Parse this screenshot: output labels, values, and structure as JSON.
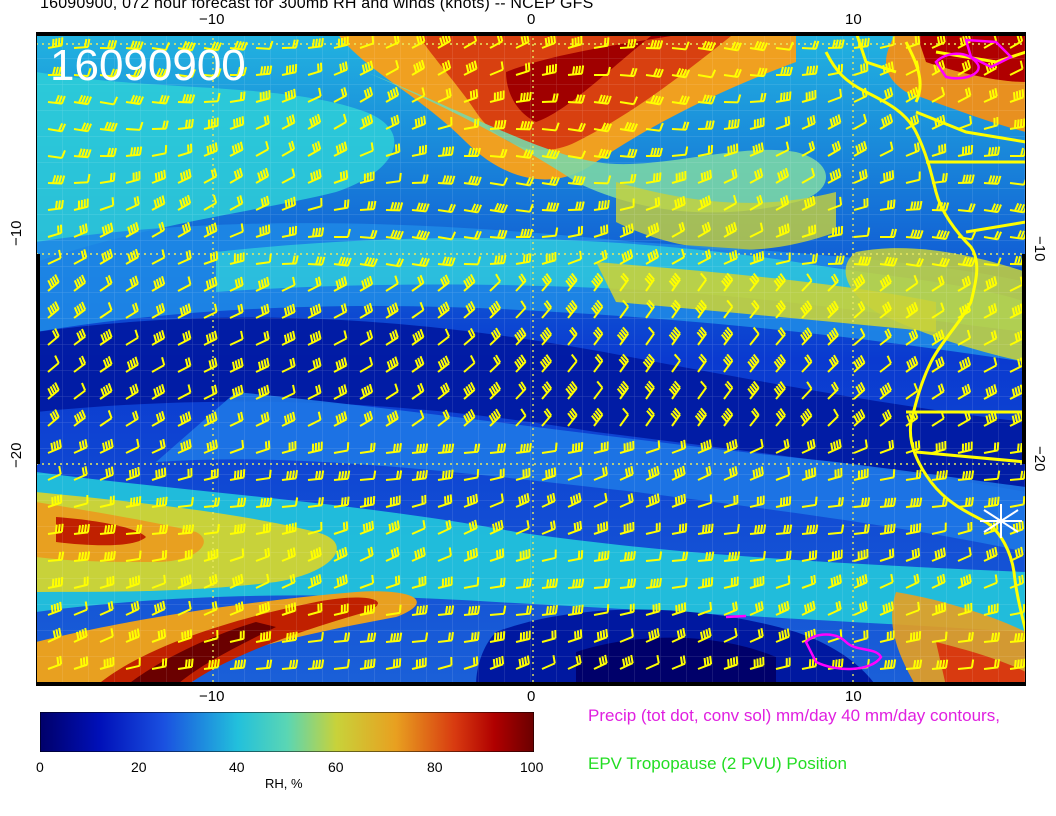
{
  "title": "16090900, 072 hour forecast for 300mb RH and winds (knots) -- NCEP GFS",
  "overlay_date": "16090900",
  "axes": {
    "top_ticks": [
      "−10",
      "0",
      "10"
    ],
    "bottom_ticks": [
      "−10",
      "0",
      "10"
    ],
    "left_ticks": [
      "−10",
      "−20"
    ],
    "right_ticks": [
      "−10",
      "−20"
    ]
  },
  "colorbar": {
    "title": "RH, %",
    "ticks": [
      "0",
      "20",
      "40",
      "60",
      "80",
      "100"
    ],
    "colors": [
      "#00006a",
      "#0020c8",
      "#1e78e6",
      "#22c8dc",
      "#7ad6a6",
      "#c8d23a",
      "#e8a020",
      "#d83a10",
      "#a00000",
      "#6a0000"
    ]
  },
  "legend": {
    "precip": "Precip (tot dot, conv sol) mm/day 40 mm/day contours,",
    "epv": "EPV Tropopause (2 PVU) Position"
  },
  "colors": {
    "wind_barbs": "#ffff00",
    "coastline": "#ffff00",
    "precip_contours": "#ff00ff",
    "epv_text": "#22dd22",
    "precip_text": "#e020e0"
  },
  "icons": [
    "station-star-icon"
  ]
}
